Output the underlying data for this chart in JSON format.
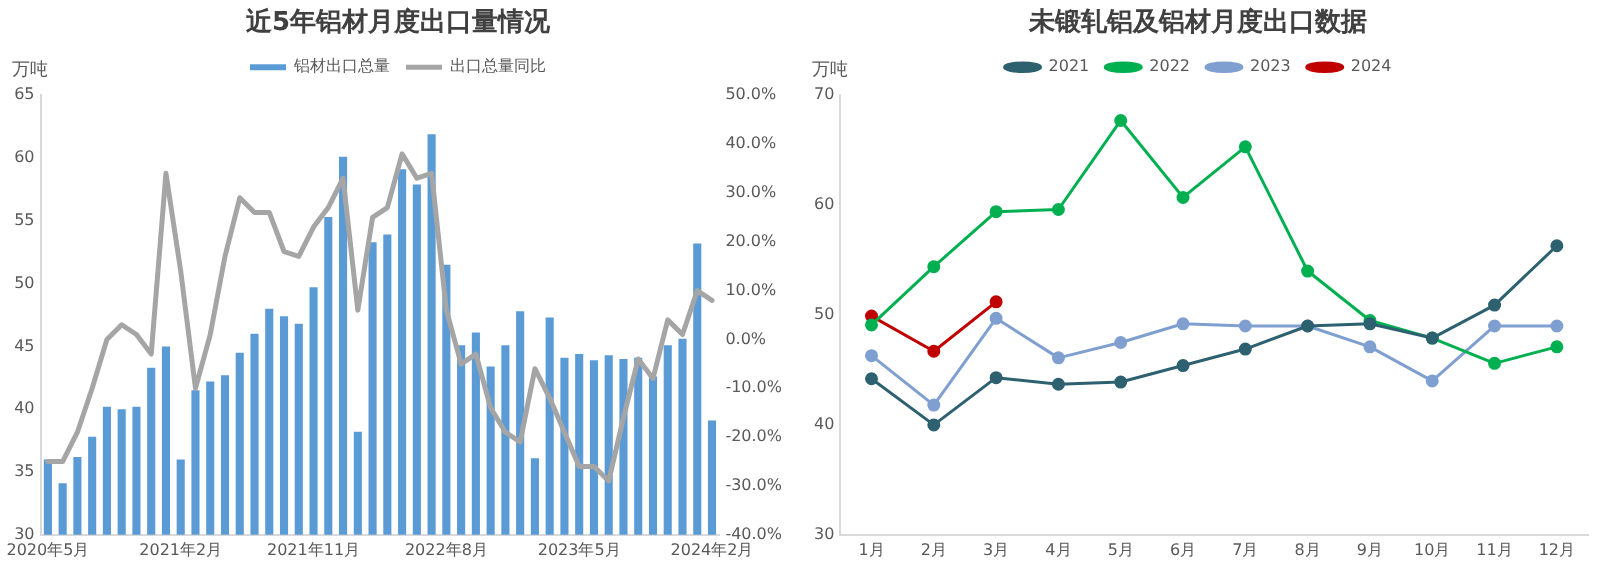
{
  "chart_data": [
    {
      "type": "bar",
      "title": "近5年铝材月度出口量情况",
      "ylabel": "万吨",
      "legend": "top",
      "marker": "none",
      "categories": [
        "2020年5月",
        null,
        null,
        null,
        null,
        null,
        null,
        null,
        null,
        "2021年2月",
        null,
        null,
        null,
        null,
        null,
        null,
        null,
        null,
        "2021年11月",
        null,
        null,
        null,
        null,
        null,
        null,
        null,
        null,
        "2022年8月",
        null,
        null,
        null,
        null,
        null,
        null,
        null,
        null,
        "2023年5月",
        null,
        null,
        null,
        null,
        null,
        null,
        null,
        null,
        "2024年2月"
      ],
      "series": [
        {
          "name": "铝材出口总量",
          "color": "#5b9bd5",
          "values": [
            36,
            34.1,
            36.2,
            37.8,
            40.2,
            40,
            40.2,
            43.3,
            45,
            36,
            41.5,
            42.2,
            42.7,
            44.5,
            46,
            48,
            47.4,
            46.8,
            49.7,
            55.3,
            60.1,
            38.2,
            53.3,
            53.9,
            59.1,
            57.9,
            61.9,
            51.5,
            45.1,
            46.1,
            43.4,
            45.1,
            47.8,
            36.1,
            47.3,
            44.1,
            44.4,
            43.9,
            44.3,
            44,
            44.1,
            42.6,
            45.1,
            45.6,
            53.2,
            39.1
          ]
        },
        {
          "name": "出口总量同比",
          "type": "line",
          "axis": "y2",
          "color": "#a5a5a5",
          "values": [
            -25,
            -25,
            -19,
            -10,
            0,
            3,
            1,
            -3,
            34,
            14,
            -10,
            1,
            17,
            29,
            26,
            26,
            18,
            17,
            23,
            27,
            33,
            6,
            25,
            27,
            38,
            33,
            34,
            6,
            -5,
            -3,
            -14,
            -19,
            -21,
            -6,
            -12,
            -19,
            -26,
            -26,
            -29,
            -16,
            -4,
            -8,
            4,
            1,
            10,
            8
          ]
        }
      ],
      "ylim": [
        30,
        65
      ],
      "yticks": [
        30,
        35,
        40,
        45,
        50,
        55,
        60,
        65
      ],
      "y2lim": [
        -40,
        50
      ],
      "y2ticks": [
        {
          "value": -40,
          "label": "-40.0%"
        },
        {
          "value": -30,
          "label": "-30.0%"
        },
        {
          "value": -20,
          "label": "-20.0%"
        },
        {
          "value": -10,
          "label": "-10.0%"
        },
        {
          "value": 0,
          "label": "0.0%"
        },
        {
          "value": 10,
          "label": "10.0%"
        },
        {
          "value": 20,
          "label": "20.0%"
        },
        {
          "value": 30,
          "label": "30.0%"
        },
        {
          "value": 40,
          "label": "40.0%"
        },
        {
          "value": 50,
          "label": "50.0%"
        }
      ]
    },
    {
      "type": "line",
      "title": "未锻轧铝及铝材月度出口数据",
      "ylabel": "万吨",
      "legend": "top",
      "marker": "circle",
      "categories": [
        "1月",
        "2月",
        "3月",
        "4月",
        "5月",
        "6月",
        "7月",
        "8月",
        "9月",
        "10月",
        "11月",
        "12月"
      ],
      "series": [
        {
          "name": "2021",
          "color": "#2e6170",
          "values": [
            44.2,
            40,
            44.3,
            43.7,
            43.9,
            45.4,
            46.9,
            49,
            49.2,
            47.9,
            50.9,
            56.3
          ]
        },
        {
          "name": "2022",
          "color": "#00b050",
          "values": [
            49.1,
            54.4,
            59.4,
            59.6,
            67.7,
            60.7,
            65.3,
            54,
            49.5,
            47.9,
            45.6,
            47.1
          ]
        },
        {
          "name": "2023",
          "color": "#7f9fd0",
          "values": [
            46.3,
            41.8,
            49.7,
            46.1,
            47.5,
            49.2,
            49,
            49,
            47.1,
            44,
            49,
            49
          ]
        },
        {
          "name": "2024",
          "color": "#c00000",
          "values": [
            49.9,
            46.7,
            51.2,
            null,
            null,
            null,
            null,
            null,
            null,
            null,
            null,
            null
          ]
        }
      ],
      "ylim": [
        30,
        70
      ],
      "yticks": [
        30,
        40,
        50,
        60,
        70
      ]
    }
  ]
}
